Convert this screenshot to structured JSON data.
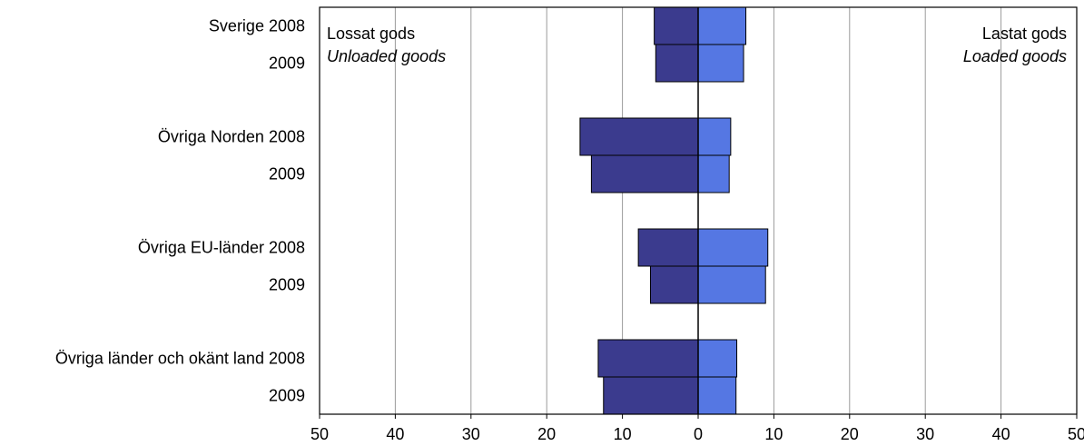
{
  "chart_data": {
    "type": "bar",
    "orientation": "horizontal-diverging",
    "rows": [
      {
        "label": "Sverige 2008",
        "unloaded": 5.8,
        "loaded": 6.3
      },
      {
        "label": "2009",
        "unloaded": 5.6,
        "loaded": 6.0
      },
      {
        "label": "Övriga Norden 2008",
        "unloaded": 15.6,
        "loaded": 4.3
      },
      {
        "label": "2009",
        "unloaded": 14.1,
        "loaded": 4.1
      },
      {
        "label": "Övriga EU-länder 2008",
        "unloaded": 7.9,
        "loaded": 9.2
      },
      {
        "label": "2009",
        "unloaded": 6.3,
        "loaded": 8.9
      },
      {
        "label": "Övriga länder och okänt land 2008",
        "unloaded": 13.2,
        "loaded": 5.1
      },
      {
        "label": "2009",
        "unloaded": 12.5,
        "loaded": 5.0
      }
    ],
    "xlim": [
      -50,
      50
    ],
    "ticks": [
      "50",
      "40",
      "30",
      "20",
      "10",
      "0",
      "10",
      "20",
      "30",
      "40",
      "50"
    ],
    "grid": true,
    "colors": {
      "unloaded": "#3b3b8e",
      "loaded": "#5577e3",
      "grid": "#9b9b9b",
      "border": "#000000"
    },
    "annotations": {
      "left_title": "Lossat gods",
      "left_subtitle": "Unloaded goods",
      "right_title": "Lastat gods",
      "right_subtitle": "Loaded goods"
    }
  }
}
